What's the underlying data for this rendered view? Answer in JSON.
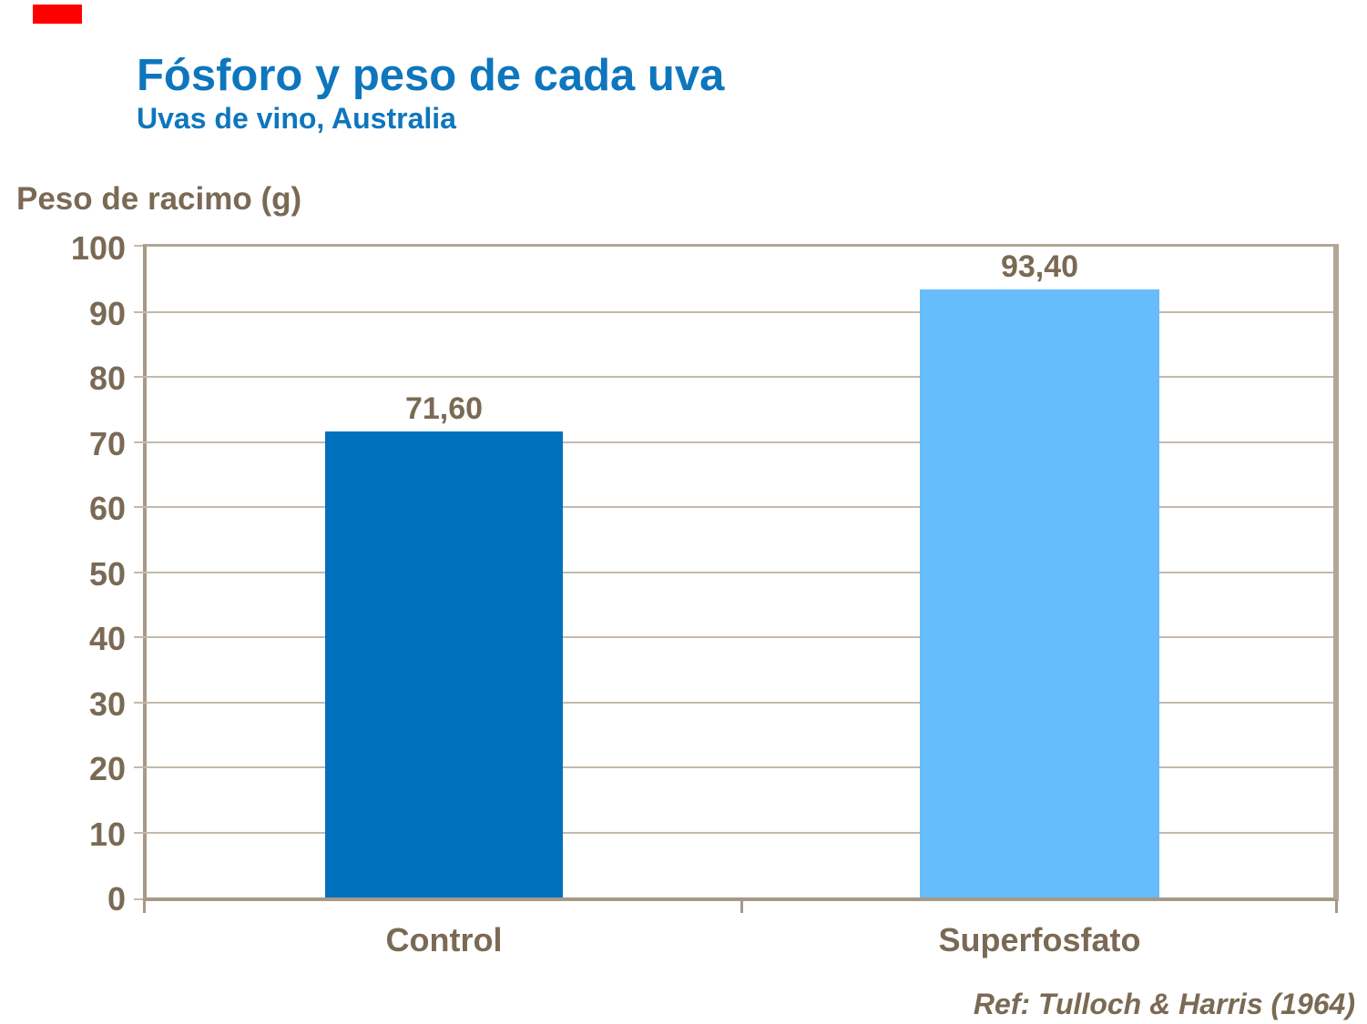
{
  "header": {
    "title": "Fósforo y peso de cada uva",
    "subtitle": "Uvas de vino, Australia"
  },
  "footer": {
    "reference": "Ref: Tulloch & Harris (1964)"
  },
  "chart_data": {
    "type": "bar",
    "title": "Fósforo y peso de cada uva",
    "subtitle": "Uvas de vino, Australia",
    "ylabel": "Peso de racimo (g)",
    "xlabel": "",
    "categories": [
      "Control",
      "Superfosfato"
    ],
    "values": [
      71.6,
      93.4
    ],
    "value_labels": [
      "71,60",
      "93,40"
    ],
    "ylim": [
      0,
      100
    ],
    "ytick_step": 10,
    "ytick_labels": [
      "0",
      "10",
      "20",
      "30",
      "40",
      "50",
      "60",
      "70",
      "80",
      "90",
      "100"
    ],
    "grid": "horizontal",
    "legend": "none",
    "bar_colors": [
      "#0071BD",
      "#67BCFB"
    ],
    "reference": "Ref: Tulloch & Harris (1964)"
  },
  "colors": {
    "title_blue": "#0E76BD",
    "text_brown": "#7A6A55",
    "bar_dark_blue": "#0071BD",
    "bar_light_blue": "#67BCFB",
    "plot_border_tan": "#B3A697",
    "axis_tan": "#A69987",
    "gridline_tan": "#C4B9AB",
    "marker_red": "#FF0000",
    "background": "#FFFFFF"
  }
}
